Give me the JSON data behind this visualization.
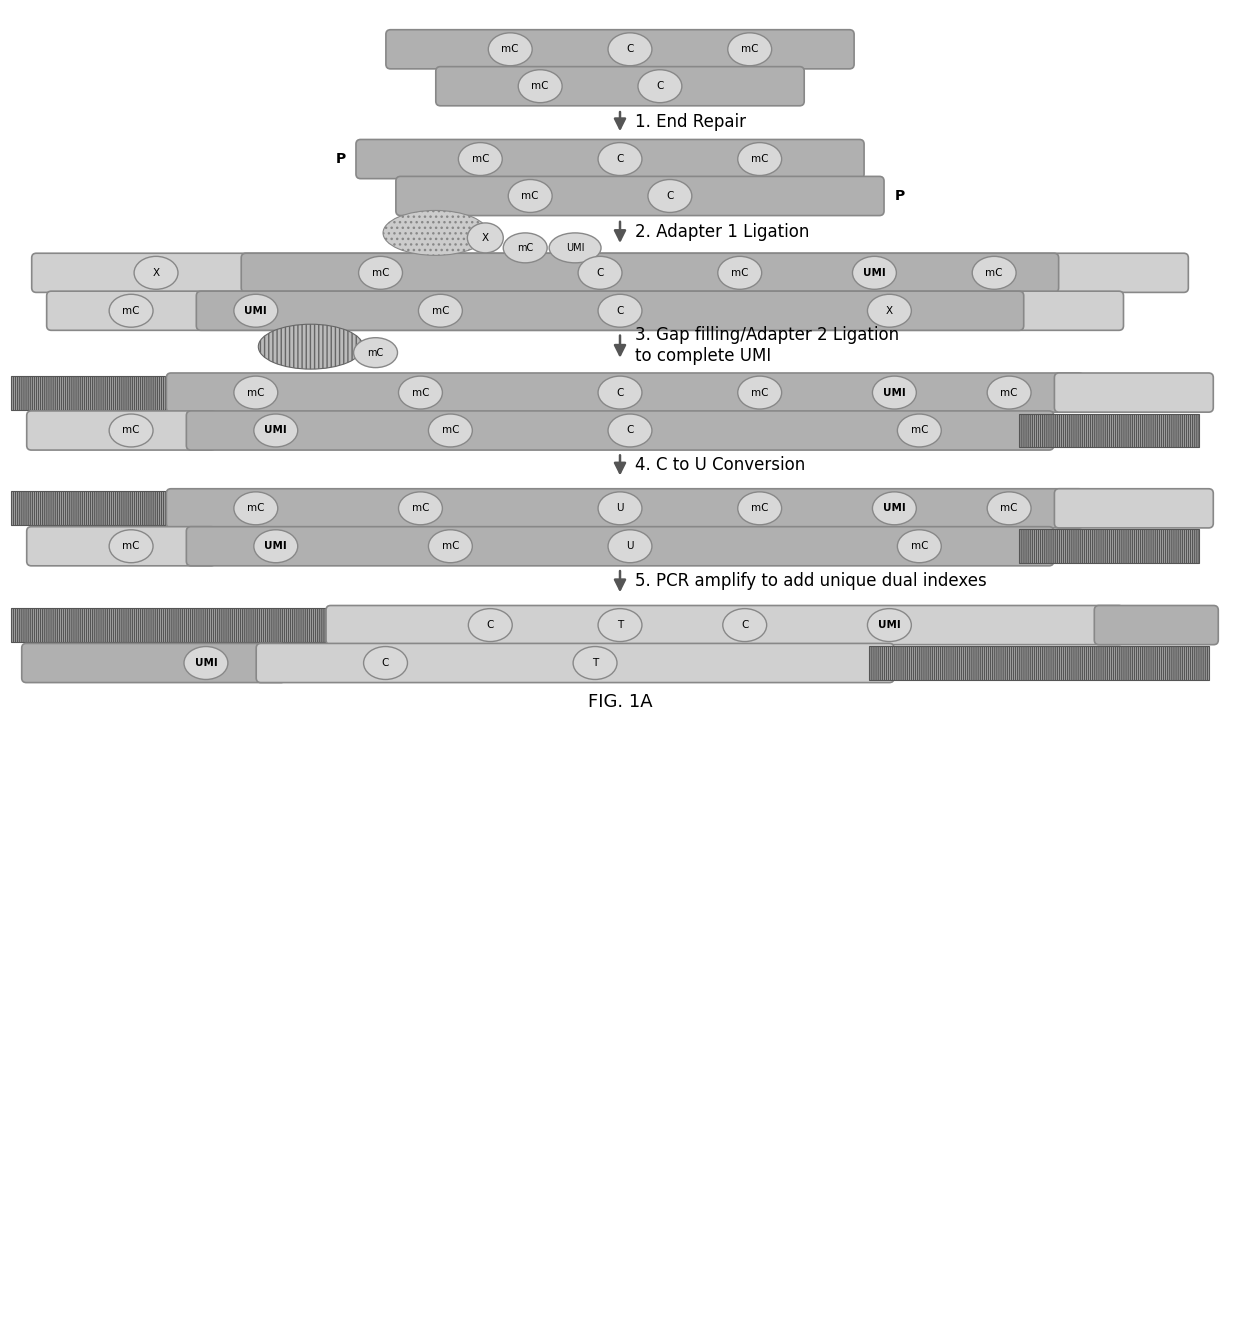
{
  "fig_label": "FIG. 1A",
  "steps": [
    "1. End Repair",
    "2. Adapter 1 Ligation",
    "3. Gap filling/Adapter 2 Ligation\nto complete UMI",
    "4. C to U Conversion",
    "5. PCR amplify to add unique dual indexes"
  ],
  "bg_color": "#ffffff"
}
